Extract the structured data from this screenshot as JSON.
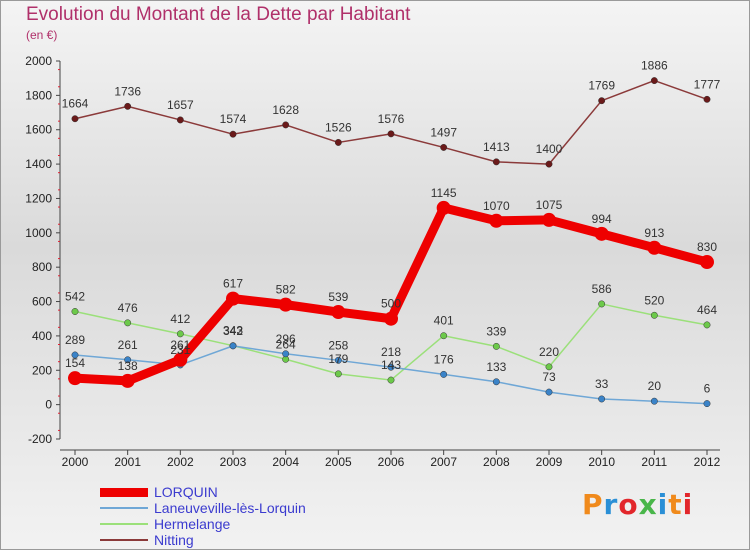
{
  "header": {
    "title": "Evolution du Montant de la Dette par Habitant",
    "subtitle": "(en €)"
  },
  "logo": {
    "text": "Proxiti",
    "colors": [
      "#f08a1c",
      "#2a8fd6",
      "#e2262b",
      "#49b64a",
      "#2a8fd6",
      "#f08a1c",
      "#e2262b"
    ]
  },
  "chart_data": {
    "type": "line",
    "title": "Evolution du Montant de la Dette par Habitant",
    "subtitle": "(en €)",
    "xlabel": "",
    "ylabel": "",
    "x": [
      "2000",
      "2001",
      "2002",
      "2003",
      "2004",
      "2005",
      "2006",
      "2007",
      "2008",
      "2009",
      "2010",
      "2011",
      "2012"
    ],
    "ylim": [
      -200,
      2000
    ],
    "yticks": [
      "-200",
      "0",
      "200",
      "400",
      "600",
      "800",
      "1000",
      "1200",
      "1400",
      "1600",
      "1800",
      "2000"
    ],
    "grid": false,
    "legend_position": "bottom-left",
    "series": [
      {
        "name": "LORQUIN",
        "color": "#ee0000",
        "point_color": "#ee0000",
        "width": 9,
        "values": [
          154,
          138,
          261,
          617,
          582,
          539,
          500,
          1145,
          1070,
          1075,
          994,
          913,
          830
        ],
        "labels": [
          "154",
          "138",
          "261",
          "617",
          "582",
          "539",
          "500",
          "1145",
          "1070",
          "1075",
          "994",
          "913",
          "830"
        ]
      },
      {
        "name": "Laneuveville-lès-Lorquin",
        "color": "#6fa7d6",
        "point_color": "#3a83c8",
        "width": 1.5,
        "values": [
          289,
          261,
          231,
          342,
          296,
          258,
          218,
          176,
          133,
          73,
          33,
          20,
          6
        ],
        "labels": [
          "289",
          "261",
          "231",
          "342",
          "296",
          "258",
          "218",
          "176",
          "133",
          "73",
          "33",
          "20",
          "6"
        ]
      },
      {
        "name": "Hermelange",
        "color": "#9be07a",
        "point_color": "#6cc94a",
        "width": 1.5,
        "values": [
          542,
          476,
          412,
          343,
          264,
          179,
          143,
          401,
          339,
          220,
          586,
          520,
          464
        ],
        "labels": [
          "542",
          "476",
          "412",
          "343",
          "264",
          "179",
          "143",
          "401",
          "339",
          "220",
          "586",
          "520",
          "464"
        ]
      },
      {
        "name": "Nitting",
        "color": "#8b3a3a",
        "point_color": "#6b1a1a",
        "width": 1.5,
        "values": [
          1664,
          1736,
          1657,
          1574,
          1628,
          1526,
          1576,
          1497,
          1413,
          1400,
          1769,
          1886,
          1777
        ],
        "labels": [
          "1664",
          "1736",
          "1657",
          "1574",
          "1628",
          "1526",
          "1576",
          "1497",
          "1413",
          "1400",
          "1769",
          "1886",
          "1777"
        ]
      }
    ]
  }
}
